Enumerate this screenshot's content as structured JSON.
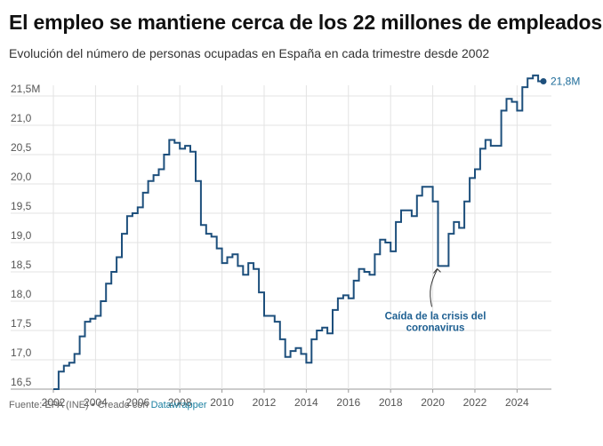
{
  "header": {
    "title": "El empleo se mantiene cerca de los 22 millones de empleados",
    "subtitle": "Evolución del número de personas ocupadas en España en cada trimestre desde 2002"
  },
  "footer": {
    "source": "Fuente: EPA (INE) • Creado con",
    "tool_link": "Datawrapper"
  },
  "colors": {
    "line": "#1d4f7c",
    "end_label": "#1d6b99",
    "annotation": "#1d5f91",
    "grid": "#e3e3e3"
  },
  "chart_data": {
    "type": "line",
    "step": true,
    "title": "El empleo se mantiene cerca de los 22 millones de empleados",
    "subtitle": "Evolución del número de personas ocupadas en España en cada trimestre desde 2002",
    "xlabel": "",
    "ylabel": "",
    "xlim": [
      2002,
      2025.25
    ],
    "ylim": [
      16.5,
      21.8
    ],
    "grid": true,
    "x_ticks": [
      2002,
      2004,
      2006,
      2008,
      2010,
      2012,
      2014,
      2016,
      2018,
      2020,
      2022,
      2024
    ],
    "x_tick_labels": [
      "2002",
      "2004",
      "2006",
      "2008",
      "2010",
      "2012",
      "2014",
      "2016",
      "2018",
      "2020",
      "2022",
      "2024"
    ],
    "y_ticks": [
      16.5,
      17.0,
      17.5,
      18.0,
      18.5,
      19.0,
      19.5,
      20.0,
      20.5,
      21.0,
      21.5
    ],
    "y_tick_labels": [
      "16,5",
      "17,0",
      "17,5",
      "18,0",
      "18,5",
      "19,0",
      "19,5",
      "20,0",
      "20,5",
      "21,0",
      "21,5M"
    ],
    "end_label": "21,8M",
    "annotation": {
      "lines": [
        "Caída de la crisis del",
        "coronavirus"
      ],
      "x": 2020.25,
      "y": 18.6
    },
    "series": [
      {
        "start_year": 2002,
        "values": [
          16.5,
          16.8,
          16.9,
          16.95,
          17.1,
          17.4,
          17.65,
          17.7,
          17.75,
          18.0,
          18.3,
          18.5,
          18.75,
          19.15,
          19.45,
          19.5,
          19.6,
          19.85,
          20.05,
          20.15,
          20.25,
          20.5,
          20.75,
          20.7,
          20.6,
          20.65,
          20.55,
          20.05,
          19.3,
          19.15,
          19.1,
          18.9,
          18.65,
          18.75,
          18.8,
          18.6,
          18.45,
          18.65,
          18.55,
          18.15,
          17.75,
          17.75,
          17.65,
          17.35,
          17.05,
          17.15,
          17.2,
          17.1,
          16.95,
          17.35,
          17.5,
          17.55,
          17.45,
          17.85,
          18.05,
          18.1,
          18.05,
          18.35,
          18.55,
          18.5,
          18.45,
          18.8,
          19.05,
          19.0,
          18.85,
          19.35,
          19.55,
          19.55,
          19.45,
          19.8,
          19.95,
          19.95,
          19.7,
          18.6,
          18.6,
          19.15,
          19.35,
          19.25,
          19.7,
          20.1,
          20.25,
          20.6,
          20.75,
          20.65,
          20.65,
          21.25,
          21.45,
          21.4,
          21.25,
          21.65,
          21.8,
          21.85,
          21.75
        ]
      }
    ]
  }
}
